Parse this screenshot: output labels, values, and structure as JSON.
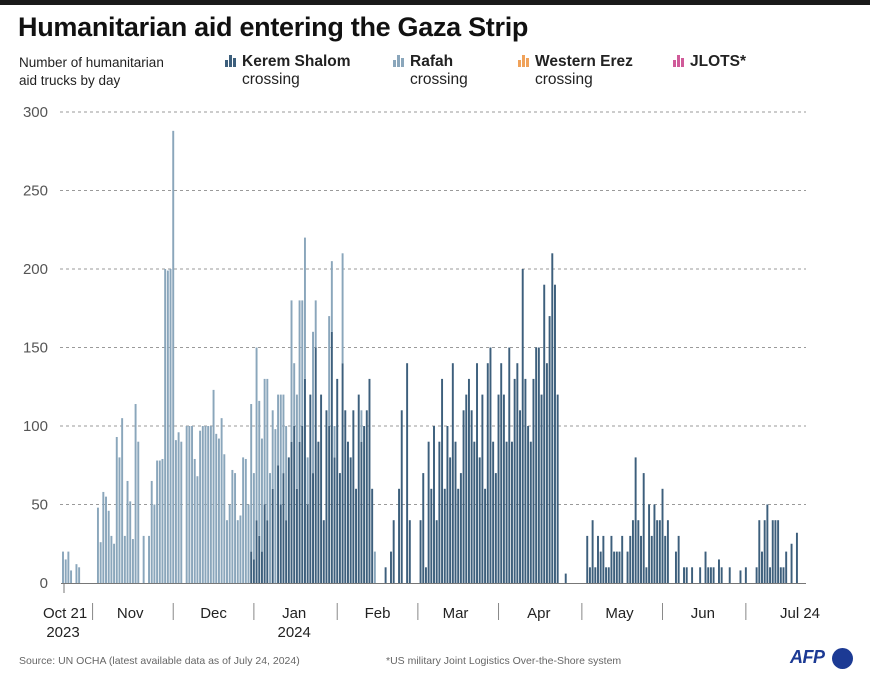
{
  "title": "Humanitarian aid entering the Gaza Strip",
  "subtitle_lines": [
    "Number of humanitarian",
    "aid trucks by day"
  ],
  "legend": [
    {
      "name": "Kerem Shalom",
      "sub": "crossing",
      "color": "#3d5f7c",
      "icon": "bar-chart-icon"
    },
    {
      "name": "Rafah",
      "sub": "crossing",
      "color": "#8aa6bb",
      "icon": "bar-chart-icon"
    },
    {
      "name": "Western Erez",
      "sub": "crossing",
      "color": "#f0a25a",
      "icon": "bar-chart-icon"
    },
    {
      "name": "JLOTS*",
      "sub": "",
      "color": "#d05a99",
      "icon": "bar-chart-icon"
    }
  ],
  "footer": {
    "source": "Source: UN OCHA (latest available data as of July 24, 2024)",
    "note": "*US military Joint Logistics Over-the-Shore system",
    "logo": "AFP"
  },
  "chart_data": {
    "type": "bar",
    "stacked": true,
    "title": "Humanitarian aid entering the Gaza Strip",
    "ylabel": "Number of humanitarian aid trucks by day",
    "xlabel": "",
    "ylim": [
      0,
      300
    ],
    "yticks": [
      0,
      50,
      100,
      150,
      200,
      250,
      300
    ],
    "grid": true,
    "legend_position": "top",
    "x_start": "2023-10-21",
    "x_end": "2024-07-24",
    "xtick_labels": [
      {
        "label": "Oct 21",
        "sub": "2023",
        "day": 0
      },
      {
        "label": "Nov",
        "sub": "",
        "day": 25
      },
      {
        "label": "Dec",
        "sub": "",
        "day": 56
      },
      {
        "label": "Jan",
        "sub": "2024",
        "day": 86
      },
      {
        "label": "Feb",
        "sub": "",
        "day": 117
      },
      {
        "label": "Mar",
        "sub": "",
        "day": 146
      },
      {
        "label": "Apr",
        "sub": "",
        "day": 177
      },
      {
        "label": "May",
        "sub": "",
        "day": 207
      },
      {
        "label": "Jun",
        "sub": "",
        "day": 238
      },
      {
        "label": "Jul 24",
        "sub": "",
        "day": 276
      }
    ],
    "month_separators_day": [
      11,
      41,
      71,
      102,
      132,
      162,
      193,
      223,
      254
    ],
    "series": [
      {
        "name": "Kerem Shalom crossing",
        "color": "#3d5f7c",
        "values": [
          0,
          0,
          0,
          0,
          0,
          0,
          0,
          0,
          0,
          0,
          0,
          0,
          0,
          0,
          0,
          0,
          0,
          0,
          0,
          0,
          0,
          0,
          0,
          0,
          0,
          0,
          0,
          0,
          0,
          0,
          0,
          0,
          0,
          0,
          0,
          0,
          0,
          0,
          0,
          0,
          0,
          0,
          0,
          0,
          0,
          0,
          0,
          0,
          0,
          0,
          0,
          0,
          0,
          0,
          0,
          0,
          0,
          0,
          0,
          0,
          0,
          0,
          0,
          0,
          0,
          0,
          0,
          0,
          0,
          0,
          20,
          15,
          40,
          30,
          20,
          50,
          40,
          0,
          60,
          0,
          75,
          50,
          70,
          40,
          80,
          90,
          100,
          60,
          90,
          100,
          130,
          50,
          120,
          70,
          150,
          90,
          120,
          40,
          110,
          100,
          160,
          80,
          130,
          70,
          140,
          110,
          90,
          80,
          110,
          60,
          120,
          90,
          100,
          110,
          130,
          60,
          0,
          0,
          0,
          0,
          10,
          0,
          20,
          40,
          0,
          60,
          110,
          0,
          140,
          40,
          0,
          0,
          0,
          40,
          70,
          10,
          90,
          60,
          100,
          40,
          90,
          130,
          60,
          100,
          80,
          140,
          90,
          60,
          70,
          110,
          120,
          130,
          110,
          90,
          140,
          80,
          120,
          60,
          140,
          150,
          90,
          70,
          120,
          140,
          120,
          90,
          150,
          90,
          130,
          140,
          110,
          200,
          130,
          100,
          90,
          130,
          150,
          150,
          120,
          190,
          140,
          170,
          210,
          190,
          120,
          0,
          0,
          6,
          0,
          0,
          0,
          0,
          0,
          0,
          0,
          30,
          10,
          40,
          10,
          30,
          20,
          30,
          10,
          10,
          30,
          20,
          20,
          20,
          30,
          0,
          20,
          30,
          40,
          80,
          40,
          30,
          70,
          10,
          50,
          30,
          50,
          40,
          40,
          60,
          30,
          40,
          0,
          0,
          20,
          30,
          0,
          10,
          10,
          0,
          10,
          0,
          0,
          10,
          0,
          20,
          10,
          10,
          10,
          0,
          15,
          10,
          0,
          0,
          10,
          0,
          0,
          0,
          8,
          0,
          10,
          0,
          0,
          0,
          10,
          40,
          20,
          40,
          50,
          10,
          40,
          40,
          40,
          10,
          10,
          20,
          0,
          25,
          0,
          32
        ]
      },
      {
        "name": "Rafah crossing",
        "color": "#8aa6bb",
        "values": [
          20,
          15,
          20,
          8,
          0,
          12,
          10,
          0,
          0,
          0,
          0,
          0,
          0,
          48,
          26,
          58,
          55,
          46,
          30,
          25,
          93,
          80,
          105,
          30,
          65,
          52,
          28,
          114,
          90,
          0,
          30,
          0,
          30,
          65,
          50,
          78,
          78,
          79,
          200,
          199,
          200,
          288,
          91,
          96,
          90,
          0,
          100,
          100,
          100,
          79,
          68,
          97,
          100,
          100,
          100,
          100,
          123,
          95,
          92,
          105,
          82,
          40,
          50,
          72,
          70,
          40,
          43,
          80,
          79,
          50,
          94,
          55,
          110,
          86,
          72,
          80,
          90,
          70,
          50,
          98,
          45,
          70,
          50,
          60,
          0,
          90,
          40,
          60,
          90,
          80,
          90,
          30,
          0,
          90,
          30,
          0,
          0,
          0,
          0,
          70,
          45,
          20,
          0,
          0,
          70,
          0,
          0,
          0,
          0,
          0,
          0,
          20,
          0,
          0,
          0,
          0,
          20,
          0,
          0,
          0,
          0,
          0,
          0,
          0,
          0,
          0,
          0,
          0,
          0,
          0,
          0,
          0,
          0,
          0,
          0,
          0,
          0,
          0,
          0,
          0,
          0,
          0,
          0,
          0,
          0,
          0,
          0,
          0,
          0,
          0,
          0,
          0,
          0,
          0,
          0,
          0,
          0,
          0,
          0,
          0,
          0,
          0,
          0,
          0,
          0,
          0,
          0,
          0,
          0,
          0,
          0,
          0,
          0,
          0,
          0,
          0,
          0,
          0,
          0,
          0,
          0,
          0,
          0,
          0,
          0,
          0,
          0,
          0,
          0,
          0,
          0,
          0,
          0,
          0,
          0,
          0,
          0,
          0,
          0,
          0,
          0,
          0,
          0,
          0,
          0,
          0,
          0,
          0,
          0,
          0,
          0,
          0,
          0,
          0,
          0,
          0,
          0,
          0,
          0,
          0,
          0,
          0,
          0,
          0,
          0,
          0,
          0,
          0,
          0,
          0,
          0,
          0,
          0,
          0,
          0,
          0,
          0,
          0,
          0,
          0,
          0,
          0,
          0,
          0,
          0,
          0,
          0,
          0,
          0,
          0,
          0,
          0,
          0,
          0,
          0,
          0,
          0,
          0,
          0,
          0,
          0,
          0,
          0,
          0,
          0,
          0,
          0,
          0,
          0,
          0,
          0,
          0,
          0,
          0,
          0,
          0,
          0,
          0,
          0,
          0,
          0,
          0,
          0,
          0,
          0,
          0,
          0,
          0,
          0,
          0,
          0,
          0,
          0
        ]
      },
      {
        "name": "Western Erez crossing",
        "color": "#f0a25a",
        "values": [
          0,
          0,
          0,
          0,
          0,
          0,
          0,
          0,
          0,
          0,
          0,
          0,
          0,
          0,
          0,
          0,
          0,
          0,
          0,
          0,
          0,
          0,
          0,
          0,
          0,
          0,
          0,
          0,
          0,
          0,
          0,
          0,
          0,
          0,
          0,
          0,
          0,
          0,
          0,
          0,
          0,
          0,
          0,
          0,
          0,
          0,
          0,
          0,
          0,
          0,
          0,
          0,
          0,
          0,
          0,
          0,
          0,
          0,
          0,
          0,
          0,
          0,
          0,
          0,
          0,
          0,
          0,
          0,
          0,
          0,
          0,
          0,
          0,
          0,
          0,
          0,
          0,
          0,
          0,
          0,
          0,
          0,
          0,
          0,
          0,
          0,
          0,
          0,
          0,
          0,
          0,
          0,
          0,
          0,
          0,
          0,
          0,
          0,
          0,
          0,
          0,
          0,
          0,
          0,
          0,
          0,
          0,
          0,
          0,
          0,
          0,
          0,
          0,
          0,
          0,
          0,
          0,
          0,
          0,
          0,
          0,
          0,
          0,
          0,
          0,
          0,
          0,
          0,
          0,
          0,
          0,
          0,
          0,
          0,
          0,
          0,
          0,
          0,
          0,
          0,
          0,
          0,
          0,
          0,
          0,
          0,
          0,
          0,
          0,
          0,
          0,
          0,
          0,
          0,
          0,
          0,
          0,
          0,
          0,
          0,
          0,
          0,
          0,
          0,
          0,
          0,
          0,
          0,
          0,
          0,
          0,
          0,
          0,
          0,
          0,
          0,
          0,
          0,
          0,
          0,
          0,
          0,
          0,
          0,
          0,
          0,
          0,
          0,
          0,
          0,
          0,
          0,
          0,
          0,
          0,
          0,
          0,
          0,
          0,
          0,
          0,
          0,
          0,
          0,
          0,
          0,
          0,
          0,
          0,
          0,
          0,
          0,
          0,
          0,
          0,
          0,
          0,
          0,
          0,
          0,
          0,
          0,
          0,
          0,
          0,
          0,
          0,
          0,
          0,
          0,
          0,
          0,
          0,
          0,
          0,
          0,
          0,
          0,
          0,
          0,
          0,
          0,
          0,
          0,
          0,
          0,
          0,
          0,
          0,
          0,
          0,
          0,
          0,
          0,
          0,
          0,
          0,
          0,
          0,
          0,
          0,
          0,
          0,
          0,
          0,
          0,
          0,
          0,
          0,
          0,
          0,
          0,
          0,
          0,
          0,
          0,
          0,
          0,
          0,
          0,
          0,
          0,
          0,
          0,
          0,
          0,
          0,
          0,
          0,
          0,
          0,
          0,
          0,
          0,
          0,
          0,
          0,
          0,
          0,
          0,
          0
        ]
      },
      {
        "name": "JLOTS*",
        "color": "#d05a99",
        "values": []
      }
    ],
    "notes": "Daily stacked values approximated from bar heights; series arrays indexed by day from 2023-10-21."
  }
}
